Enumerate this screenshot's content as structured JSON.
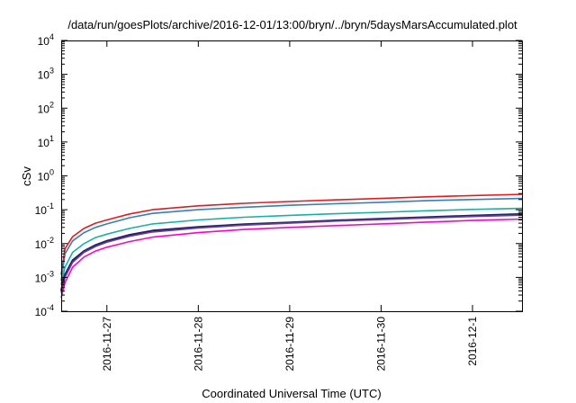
{
  "chart_data": {
    "type": "line",
    "title": "/data/run/goesPlots/archive/2016-12-01/13:00/bryn/../bryn/5daysMarsAccumulated.plot",
    "xlabel": "Coordinated Universal Time (UTC)",
    "ylabel": "cSv",
    "x_scale": "time",
    "y_scale": "log",
    "xlim": [
      "2016-11-26 12:00",
      "2016-12-01 13:00"
    ],
    "ylim": [
      0.0001,
      10000
    ],
    "x_ticks": [
      "2016-11-27",
      "2016-11-28",
      "2016-11-29",
      "2016-11-30",
      "2016-12-1"
    ],
    "y_ticks": [
      {
        "base": "10",
        "exp": "-4"
      },
      {
        "base": "10",
        "exp": "-3"
      },
      {
        "base": "10",
        "exp": "-2"
      },
      {
        "base": "10",
        "exp": "-1"
      },
      {
        "base": "10",
        "exp": "0"
      },
      {
        "base": "10",
        "exp": "1"
      },
      {
        "base": "10",
        "exp": "2"
      },
      {
        "base": "10",
        "exp": "3"
      },
      {
        "base": "10",
        "exp": "4"
      }
    ],
    "grid": false,
    "legend": "none",
    "x": [
      "2016-11-26 12:00",
      "2016-11-26 13:00",
      "2016-11-26 15:00",
      "2016-11-26 18:00",
      "2016-11-26 21:00",
      "2016-11-27 00:00",
      "2016-11-27 06:00",
      "2016-11-27 12:00",
      "2016-11-28 00:00",
      "2016-11-28 12:00",
      "2016-11-29 00:00",
      "2016-11-29 12:00",
      "2016-11-30 00:00",
      "2016-11-30 12:00",
      "2016-12-01 00:00",
      "2016-12-01 13:00"
    ],
    "series": [
      {
        "color": "#e41a1c",
        "values": [
          0.0012,
          0.007,
          0.016,
          0.028,
          0.04,
          0.05,
          0.075,
          0.1,
          0.13,
          0.155,
          0.175,
          0.195,
          0.215,
          0.24,
          0.262,
          0.285
        ]
      },
      {
        "color": "#377eb8",
        "values": [
          0.0008,
          0.005,
          0.012,
          0.021,
          0.03,
          0.038,
          0.058,
          0.078,
          0.1,
          0.118,
          0.135,
          0.15,
          0.165,
          0.185,
          0.2,
          0.215
        ]
      },
      {
        "color": "#1bb0a0",
        "values": [
          0.0006,
          0.002,
          0.0055,
          0.01,
          0.015,
          0.019,
          0.028,
          0.038,
          0.05,
          0.06,
          0.068,
          0.076,
          0.084,
          0.093,
          0.102,
          0.11
        ]
      },
      {
        "color": "#222266",
        "values": [
          0.0004,
          0.0012,
          0.0032,
          0.006,
          0.009,
          0.012,
          0.018,
          0.024,
          0.031,
          0.037,
          0.042,
          0.048,
          0.054,
          0.06,
          0.067,
          0.074
        ]
      },
      {
        "color": "#6a3d9a",
        "values": [
          0.00035,
          0.001,
          0.0028,
          0.0055,
          0.0082,
          0.011,
          0.0165,
          0.022,
          0.029,
          0.035,
          0.04,
          0.046,
          0.051,
          0.057,
          0.063,
          0.069
        ]
      },
      {
        "color": "#ff00cc",
        "values": [
          0.00025,
          0.0007,
          0.002,
          0.004,
          0.006,
          0.0078,
          0.0115,
          0.0155,
          0.021,
          0.026,
          0.03,
          0.034,
          0.038,
          0.043,
          0.048,
          0.053
        ]
      }
    ]
  }
}
